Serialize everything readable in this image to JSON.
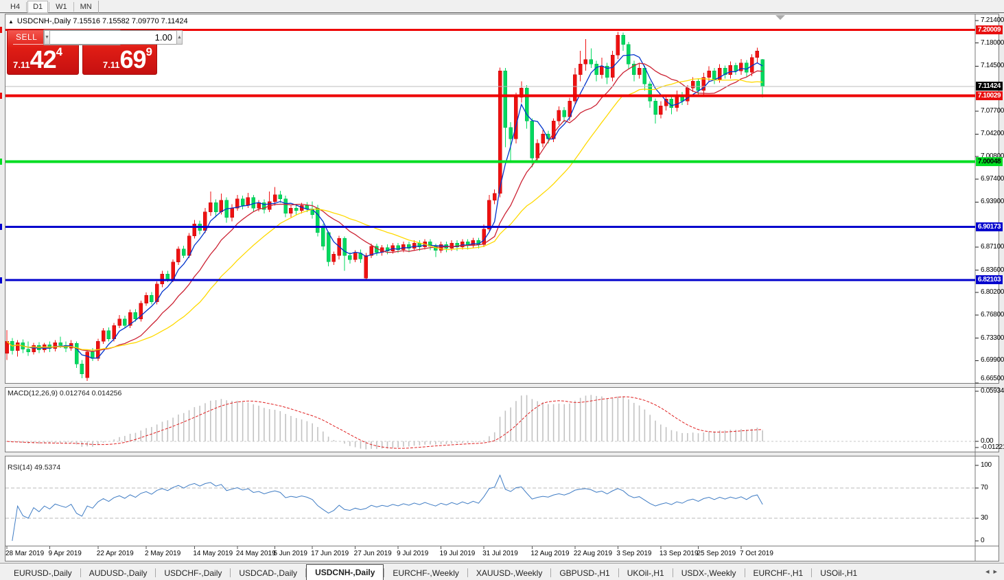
{
  "toolbar": {
    "timeframes": [
      {
        "label": "H4",
        "active": false
      },
      {
        "label": "D1",
        "active": true
      },
      {
        "label": "W1",
        "active": false
      },
      {
        "label": "MN",
        "active": false
      }
    ]
  },
  "chart": {
    "title": {
      "symbol": "USDCNH-,Daily",
      "ohlc": "7.15516 7.15582 7.09770 7.11424"
    }
  },
  "icons": {
    "collapse": "▲",
    "spin_down": "▼",
    "spin_up": "▲",
    "tab_prev": "◂",
    "tab_next": "▸"
  },
  "trade_panel": {
    "sell_label": "SELL",
    "buy_label": "BUY",
    "volume": "1.00",
    "sell_price": {
      "prefix": "7.11",
      "big": "42",
      "sup": "4"
    },
    "buy_price": {
      "prefix": "7.11",
      "big": "69",
      "sup": "9"
    }
  },
  "chart_data": {
    "type": "candlestick",
    "symbol": "USDCNH-,Daily",
    "timeframe": "Daily",
    "ylim": [
      6.665,
      7.214
    ],
    "last_ohlc": {
      "open": 7.15516,
      "high": 7.15582,
      "low": 7.0977,
      "close": 7.11424
    },
    "candle_colors": {
      "up": "#ee1111",
      "up_stroke": "#c40b0b",
      "down": "#00d95f",
      "down_stroke": "#00b14c"
    },
    "price_axis_ticks": [
      "7.21400",
      "7.18000",
      "7.14500",
      "7.07700",
      "7.04200",
      "7.00800",
      "6.97400",
      "6.93900",
      "6.87100",
      "6.83600",
      "6.80200",
      "6.76800",
      "6.73300",
      "6.69900",
      "6.66500"
    ],
    "horizontal_lines": [
      {
        "price": 7.20009,
        "label": "7.20009",
        "color": "#ee0000",
        "width": 3,
        "badge_bg": "#e80f0f",
        "badge_fg": "#ffffff"
      },
      {
        "price": 7.10029,
        "label": "7.10029",
        "color": "#ee0000",
        "width": 4,
        "badge_bg": "#e80f0f",
        "badge_fg": "#ffffff"
      },
      {
        "price": 7.00048,
        "label": "7.00048",
        "color": "#00dd22",
        "width": 4,
        "badge_bg": "#00dd22",
        "badge_fg": "#000000"
      },
      {
        "price": 6.90173,
        "label": "6.90173",
        "color": "#0000cd",
        "width": 3,
        "badge_bg": "#0000cd",
        "badge_fg": "#ffffff"
      },
      {
        "price": 6.82103,
        "label": "6.82103",
        "color": "#0000cd",
        "width": 3,
        "badge_bg": "#0000cd",
        "badge_fg": "#ffffff"
      }
    ],
    "bid_line": {
      "price": 7.11424,
      "label": "7.11424",
      "color": "#bdbdbd",
      "badge_bg": "#000000",
      "badge_fg": "#ffffff"
    },
    "moving_averages": [
      {
        "period": 5,
        "color": "#0033cc"
      },
      {
        "period": 13,
        "color": "#cc2233"
      },
      {
        "period": 24,
        "color": "#ffd900"
      }
    ],
    "date_ticks": [
      {
        "label": "28 Mar 2019",
        "bar": 0
      },
      {
        "label": "9 Apr 2019",
        "bar": 8
      },
      {
        "label": "22 Apr 2019",
        "bar": 17
      },
      {
        "label": "2 May 2019",
        "bar": 26
      },
      {
        "label": "14 May 2019",
        "bar": 35
      },
      {
        "label": "24 May 2019",
        "bar": 43
      },
      {
        "label": "5 Jun 2019",
        "bar": 50
      },
      {
        "label": "17 Jun 2019",
        "bar": 57
      },
      {
        "label": "27 Jun 2019",
        "bar": 65
      },
      {
        "label": "9 Jul 2019",
        "bar": 73
      },
      {
        "label": "19 Jul 2019",
        "bar": 81
      },
      {
        "label": "31 Jul 2019",
        "bar": 89
      },
      {
        "label": "12 Aug 2019",
        "bar": 98
      },
      {
        "label": "22 Aug 2019",
        "bar": 106
      },
      {
        "label": "3 Sep 2019",
        "bar": 114
      },
      {
        "label": "13 Sep 2019",
        "bar": 122
      },
      {
        "label": "25 Sep 2019",
        "bar": 129
      },
      {
        "label": "7 Oct 2019",
        "bar": 137
      }
    ],
    "candles": [
      [
        6.71,
        6.745,
        6.7,
        6.728
      ],
      [
        6.728,
        6.733,
        6.708,
        6.714
      ],
      [
        6.714,
        6.73,
        6.705,
        6.726
      ],
      [
        6.726,
        6.731,
        6.71,
        6.716
      ],
      [
        6.716,
        6.728,
        6.706,
        6.712
      ],
      [
        6.712,
        6.726,
        6.708,
        6.722
      ],
      [
        6.722,
        6.727,
        6.71,
        6.715
      ],
      [
        6.715,
        6.726,
        6.711,
        6.723
      ],
      [
        6.723,
        6.728,
        6.712,
        6.717
      ],
      [
        6.717,
        6.73,
        6.713,
        6.726
      ],
      [
        6.726,
        6.735,
        6.718,
        6.722
      ],
      [
        6.722,
        6.728,
        6.712,
        6.718
      ],
      [
        6.718,
        6.73,
        6.714,
        6.725
      ],
      [
        6.725,
        6.728,
        6.688,
        6.694
      ],
      [
        6.694,
        6.7,
        6.672,
        6.679
      ],
      [
        6.673,
        6.716,
        6.668,
        6.712
      ],
      [
        6.712,
        6.718,
        6.698,
        6.702
      ],
      [
        6.702,
        6.732,
        6.698,
        6.728
      ],
      [
        6.728,
        6.748,
        6.724,
        6.744
      ],
      [
        6.744,
        6.749,
        6.728,
        6.732
      ],
      [
        6.732,
        6.756,
        6.728,
        6.752
      ],
      [
        6.752,
        6.768,
        6.748,
        6.762
      ],
      [
        6.762,
        6.767,
        6.748,
        6.752
      ],
      [
        6.752,
        6.776,
        6.748,
        6.772
      ],
      [
        6.772,
        6.777,
        6.758,
        6.762
      ],
      [
        6.762,
        6.79,
        6.758,
        6.786
      ],
      [
        6.786,
        6.802,
        6.782,
        6.798
      ],
      [
        6.798,
        6.803,
        6.784,
        6.788
      ],
      [
        6.788,
        6.819,
        6.784,
        6.815
      ],
      [
        6.815,
        6.835,
        6.81,
        6.83
      ],
      [
        6.83,
        6.835,
        6.818,
        6.822
      ],
      [
        6.822,
        6.852,
        6.818,
        6.848
      ],
      [
        6.848,
        6.872,
        6.844,
        6.868
      ],
      [
        6.868,
        6.873,
        6.854,
        6.858
      ],
      [
        6.858,
        6.892,
        6.854,
        6.888
      ],
      [
        6.888,
        6.912,
        6.884,
        6.906
      ],
      [
        6.906,
        6.911,
        6.89,
        6.896
      ],
      [
        6.896,
        6.93,
        6.892,
        6.924
      ],
      [
        6.924,
        6.955,
        6.918,
        6.938
      ],
      [
        6.938,
        6.943,
        6.916,
        6.924
      ],
      [
        6.924,
        6.952,
        6.92,
        6.942
      ],
      [
        6.942,
        6.946,
        6.908,
        6.916
      ],
      [
        6.916,
        6.936,
        6.91,
        6.93
      ],
      [
        6.93,
        6.95,
        6.926,
        6.944
      ],
      [
        6.944,
        6.949,
        6.928,
        6.934
      ],
      [
        6.934,
        6.953,
        6.93,
        6.946
      ],
      [
        6.946,
        6.95,
        6.924,
        6.93
      ],
      [
        6.93,
        6.942,
        6.925,
        6.938
      ],
      [
        6.938,
        6.943,
        6.922,
        6.928
      ],
      [
        6.928,
        6.955,
        6.924,
        6.94
      ],
      [
        6.94,
        6.962,
        6.934,
        6.95
      ],
      [
        6.95,
        6.956,
        6.938,
        6.944
      ],
      [
        6.944,
        6.949,
        6.916,
        6.922
      ],
      [
        6.922,
        6.934,
        6.916,
        6.93
      ],
      [
        6.93,
        6.934,
        6.92,
        6.926
      ],
      [
        6.926,
        6.938,
        6.922,
        6.934
      ],
      [
        6.934,
        6.939,
        6.924,
        6.929
      ],
      [
        6.929,
        6.94,
        6.914,
        6.92
      ],
      [
        6.93,
        6.935,
        6.887,
        6.893
      ],
      [
        6.902,
        6.906,
        6.866,
        6.872
      ],
      [
        6.893,
        6.895,
        6.842,
        6.849
      ],
      [
        6.849,
        6.864,
        6.844,
        6.86
      ],
      [
        6.858,
        6.888,
        6.852,
        6.884
      ],
      [
        6.884,
        6.887,
        6.835,
        6.858
      ],
      [
        6.858,
        6.863,
        6.846,
        6.852
      ],
      [
        6.852,
        6.866,
        6.848,
        6.862
      ],
      [
        6.862,
        6.867,
        6.847,
        6.853
      ],
      [
        6.824,
        6.862,
        6.82,
        6.858
      ],
      [
        6.858,
        6.876,
        6.854,
        6.872
      ],
      [
        6.872,
        6.876,
        6.858,
        6.863
      ],
      [
        6.863,
        6.874,
        6.858,
        6.87
      ],
      [
        6.87,
        6.875,
        6.86,
        6.865
      ],
      [
        6.865,
        6.877,
        6.861,
        6.873
      ],
      [
        6.873,
        6.877,
        6.862,
        6.867
      ],
      [
        6.867,
        6.879,
        6.863,
        6.875
      ],
      [
        6.875,
        6.879,
        6.863,
        6.869
      ],
      [
        6.869,
        6.881,
        6.865,
        6.877
      ],
      [
        6.877,
        6.881,
        6.865,
        6.871
      ],
      [
        6.871,
        6.883,
        6.867,
        6.879
      ],
      [
        6.879,
        6.883,
        6.866,
        6.872
      ],
      [
        6.872,
        6.876,
        6.856,
        6.866
      ],
      [
        6.866,
        6.879,
        6.862,
        6.875
      ],
      [
        6.875,
        6.879,
        6.863,
        6.869
      ],
      [
        6.869,
        6.881,
        6.865,
        6.877
      ],
      [
        6.877,
        6.881,
        6.865,
        6.871
      ],
      [
        6.871,
        6.883,
        6.867,
        6.879
      ],
      [
        6.879,
        6.883,
        6.867,
        6.873
      ],
      [
        6.873,
        6.885,
        6.869,
        6.881
      ],
      [
        6.881,
        6.885,
        6.869,
        6.875
      ],
      [
        6.875,
        6.905,
        6.871,
        6.898
      ],
      [
        6.898,
        6.95,
        6.894,
        6.942
      ],
      [
        6.942,
        6.958,
        6.936,
        6.952
      ],
      [
        6.952,
        7.143,
        6.946,
        7.138
      ],
      [
        7.138,
        7.142,
        7.022,
        7.052
      ],
      [
        7.052,
        7.06,
        6.998,
        7.035
      ],
      [
        7.035,
        7.105,
        7.028,
        7.098
      ],
      [
        7.098,
        7.122,
        7.09,
        7.112
      ],
      [
        7.112,
        7.116,
        7.05,
        7.062
      ],
      [
        7.062,
        7.066,
        6.992,
        7.006
      ],
      [
        7.006,
        7.034,
        7.0,
        7.028
      ],
      [
        7.028,
        7.048,
        7.022,
        7.042
      ],
      [
        7.042,
        7.047,
        7.028,
        7.035
      ],
      [
        7.035,
        7.066,
        7.03,
        7.062
      ],
      [
        7.062,
        7.084,
        7.056,
        7.078
      ],
      [
        7.078,
        7.083,
        7.06,
        7.068
      ],
      [
        7.068,
        7.097,
        7.062,
        7.092
      ],
      [
        7.092,
        7.142,
        7.086,
        7.132
      ],
      [
        7.132,
        7.168,
        7.122,
        7.148
      ],
      [
        7.148,
        7.186,
        7.138,
        7.155
      ],
      [
        7.155,
        7.172,
        7.142,
        7.148
      ],
      [
        7.148,
        7.153,
        7.122,
        7.132
      ],
      [
        7.132,
        7.158,
        7.126,
        7.145
      ],
      [
        7.145,
        7.15,
        7.118,
        7.128
      ],
      [
        7.128,
        7.168,
        7.122,
        7.162
      ],
      [
        7.162,
        7.197,
        7.156,
        7.192
      ],
      [
        7.192,
        7.196,
        7.168,
        7.178
      ],
      [
        7.178,
        7.182,
        7.14,
        7.148
      ],
      [
        7.148,
        7.153,
        7.122,
        7.132
      ],
      [
        7.132,
        7.15,
        7.126,
        7.142
      ],
      [
        7.142,
        7.146,
        7.108,
        7.118
      ],
      [
        7.118,
        7.122,
        7.082,
        7.092
      ],
      [
        7.092,
        7.096,
        7.058,
        7.072
      ],
      [
        7.072,
        7.092,
        7.066,
        7.085
      ],
      [
        7.085,
        7.1,
        7.078,
        7.095
      ],
      [
        7.095,
        7.099,
        7.072,
        7.082
      ],
      [
        7.082,
        7.108,
        7.076,
        7.102
      ],
      [
        7.102,
        7.106,
        7.086,
        7.092
      ],
      [
        7.092,
        7.116,
        7.086,
        7.112
      ],
      [
        7.112,
        7.128,
        7.106,
        7.122
      ],
      [
        7.122,
        7.126,
        7.102,
        7.108
      ],
      [
        7.108,
        7.135,
        7.102,
        7.128
      ],
      [
        7.128,
        7.145,
        7.122,
        7.138
      ],
      [
        7.138,
        7.142,
        7.118,
        7.125
      ],
      [
        7.125,
        7.148,
        7.12,
        7.142
      ],
      [
        7.142,
        7.146,
        7.126,
        7.132
      ],
      [
        7.132,
        7.152,
        7.126,
        7.146
      ],
      [
        7.146,
        7.15,
        7.132,
        7.138
      ],
      [
        7.138,
        7.156,
        7.132,
        7.15
      ],
      [
        7.15,
        7.154,
        7.128,
        7.136
      ],
      [
        7.136,
        7.163,
        7.13,
        7.158
      ],
      [
        7.158,
        7.173,
        7.15,
        7.168
      ],
      [
        7.15516,
        7.15582,
        7.0977,
        7.11424
      ]
    ],
    "macd": {
      "params": "12,26,9",
      "label": "MACD(12,26,9) 0.012764 0.014256",
      "current": [
        0.012764,
        0.014256
      ],
      "axis": [
        {
          "label": "0.059344",
          "value": 0.059344
        },
        {
          "label": "0.00",
          "value": 0
        },
        {
          "label": "-0.012219",
          "value": -0.012219
        }
      ],
      "histogram_color": "#c2c2c2",
      "signal_color": "#e02020"
    },
    "rsi": {
      "period": 14,
      "value": 49.5374,
      "label": "RSI(14) 49.5374",
      "axis": [
        {
          "label": "100",
          "value": 100
        },
        {
          "label": "70",
          "value": 70
        },
        {
          "label": "30",
          "value": 30
        },
        {
          "label": "0",
          "value": 0
        }
      ],
      "levels": [
        70,
        30
      ],
      "line_color": "#3f7cc4",
      "level_color": "#b8b8b8"
    }
  },
  "tabs": {
    "items": [
      {
        "label": "EURUSD-,Daily",
        "active": false
      },
      {
        "label": "AUDUSD-,Daily",
        "active": false
      },
      {
        "label": "USDCHF-,Daily",
        "active": false
      },
      {
        "label": "USDCAD-,Daily",
        "active": false
      },
      {
        "label": "USDCNH-,Daily",
        "active": true
      },
      {
        "label": "EURCHF-,Weekly",
        "active": false
      },
      {
        "label": "XAUUSD-,Weekly",
        "active": false
      },
      {
        "label": "GBPUSD-,H1",
        "active": false
      },
      {
        "label": "UKOil-,H1",
        "active": false
      },
      {
        "label": "USDX-,Weekly",
        "active": false
      },
      {
        "label": "EURCHF-,H1",
        "active": false
      },
      {
        "label": "USOil-,H1",
        "active": false
      }
    ]
  }
}
